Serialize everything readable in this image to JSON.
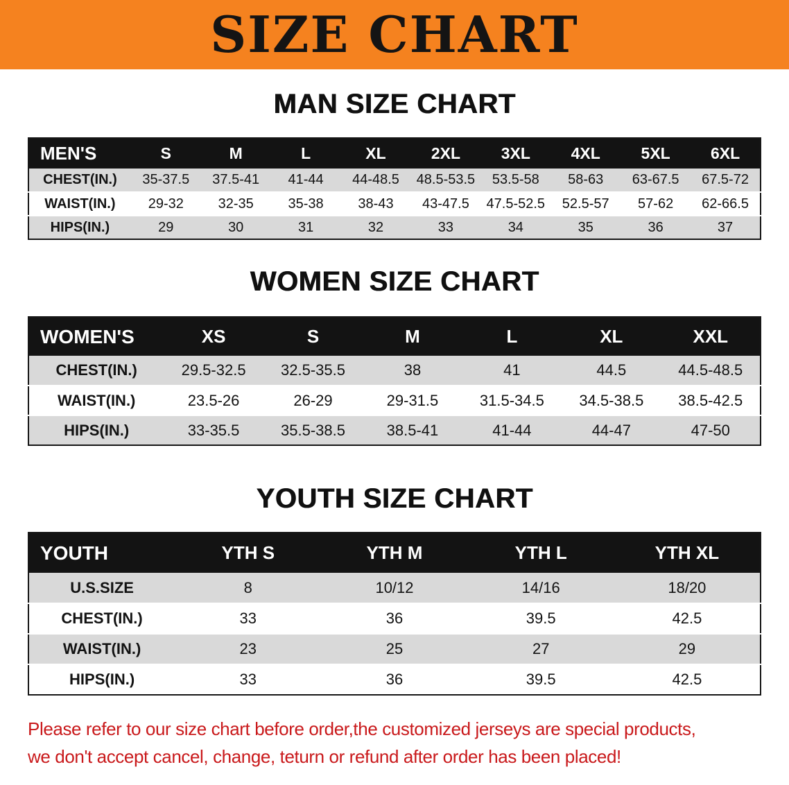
{
  "banner": {
    "title": "SIZE CHART"
  },
  "colors": {
    "banner_bg": "#F5821F",
    "table_header_bg": "#131313",
    "row_stripe": "#D9D9D9",
    "heading_text": "#101010",
    "disclaimer_text": "#C9191B"
  },
  "sections": [
    {
      "id": "men",
      "heading": "MAN SIZE CHART",
      "table": {
        "columns": [
          "MEN'S",
          "S",
          "M",
          "L",
          "XL",
          "2XL",
          "3XL",
          "4XL",
          "5XL",
          "6XL"
        ],
        "rows": [
          [
            "CHEST(IN.)",
            "35-37.5",
            "37.5-41",
            "41-44",
            "44-48.5",
            "48.5-53.5",
            "53.5-58",
            "58-63",
            "63-67.5",
            "67.5-72"
          ],
          [
            "WAIST(IN.)",
            "29-32",
            "32-35",
            "35-38",
            "38-43",
            "43-47.5",
            "47.5-52.5",
            "52.5-57",
            "57-62",
            "62-66.5"
          ],
          [
            "HIPS(IN.)",
            "29",
            "30",
            "31",
            "32",
            "33",
            "34",
            "35",
            "36",
            "37"
          ]
        ]
      }
    },
    {
      "id": "women",
      "heading": "WOMEN SIZE CHART",
      "table": {
        "columns": [
          "WOMEN'S",
          "XS",
          "S",
          "M",
          "L",
          "XL",
          "XXL"
        ],
        "rows": [
          [
            "CHEST(IN.)",
            "29.5-32.5",
            "32.5-35.5",
            "38",
            "41",
            "44.5",
            "44.5-48.5"
          ],
          [
            "WAIST(IN.)",
            "23.5-26",
            "26-29",
            "29-31.5",
            "31.5-34.5",
            "34.5-38.5",
            "38.5-42.5"
          ],
          [
            "HIPS(IN.)",
            "33-35.5",
            "35.5-38.5",
            "38.5-41",
            "41-44",
            "44-47",
            "47-50"
          ]
        ]
      }
    },
    {
      "id": "youth",
      "heading": "YOUTH SIZE CHART",
      "table": {
        "columns": [
          "YOUTH",
          "YTH S",
          "YTH M",
          "YTH L",
          "YTH XL"
        ],
        "rows": [
          [
            "U.S.SIZE",
            "8",
            "10/12",
            "14/16",
            "18/20"
          ],
          [
            "CHEST(IN.)",
            "33",
            "36",
            "39.5",
            "42.5"
          ],
          [
            "WAIST(IN.)",
            "23",
            "25",
            "27",
            "29"
          ],
          [
            "HIPS(IN.)",
            "33",
            "36",
            "39.5",
            "42.5"
          ]
        ]
      }
    }
  ],
  "disclaimer": {
    "line1": "Please refer to our size chart before order,the customized jerseys are special products,",
    "line2": "we don't accept cancel, change, teturn or refund after order has been placed!"
  }
}
